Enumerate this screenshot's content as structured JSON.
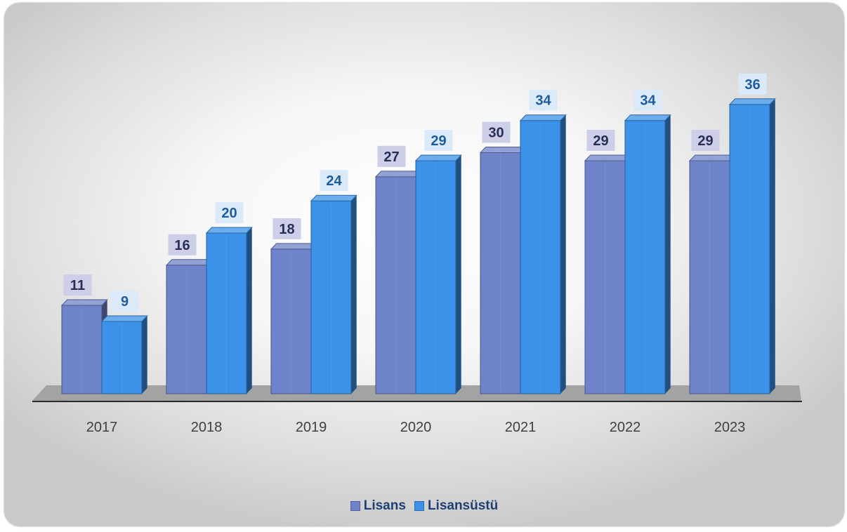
{
  "colors": {
    "lisans": "#6e83c9",
    "lisansustu": "#3b92e8",
    "legend_text": "#1f3f73",
    "label_lisans_bg": "#cdcfe8",
    "label_lisans_text": "#2a2d55",
    "label_lisansustu_bg": "#dbeaf8",
    "label_lisansustu_text": "#1f5c9c",
    "tick_text": "#404040"
  },
  "chart_data": {
    "type": "bar",
    "categories": [
      "2017",
      "2018",
      "2019",
      "2020",
      "2021",
      "2022",
      "2023"
    ],
    "series": [
      {
        "name": "Lisans",
        "values": [
          11,
          16,
          18,
          27,
          30,
          29,
          29
        ]
      },
      {
        "name": "Lisansüstü",
        "values": [
          9,
          20,
          24,
          29,
          34,
          34,
          36
        ]
      }
    ],
    "ylim": [
      0,
      40
    ],
    "grid": true,
    "legend": "bottom-center",
    "style": "3d-clustered-column"
  }
}
